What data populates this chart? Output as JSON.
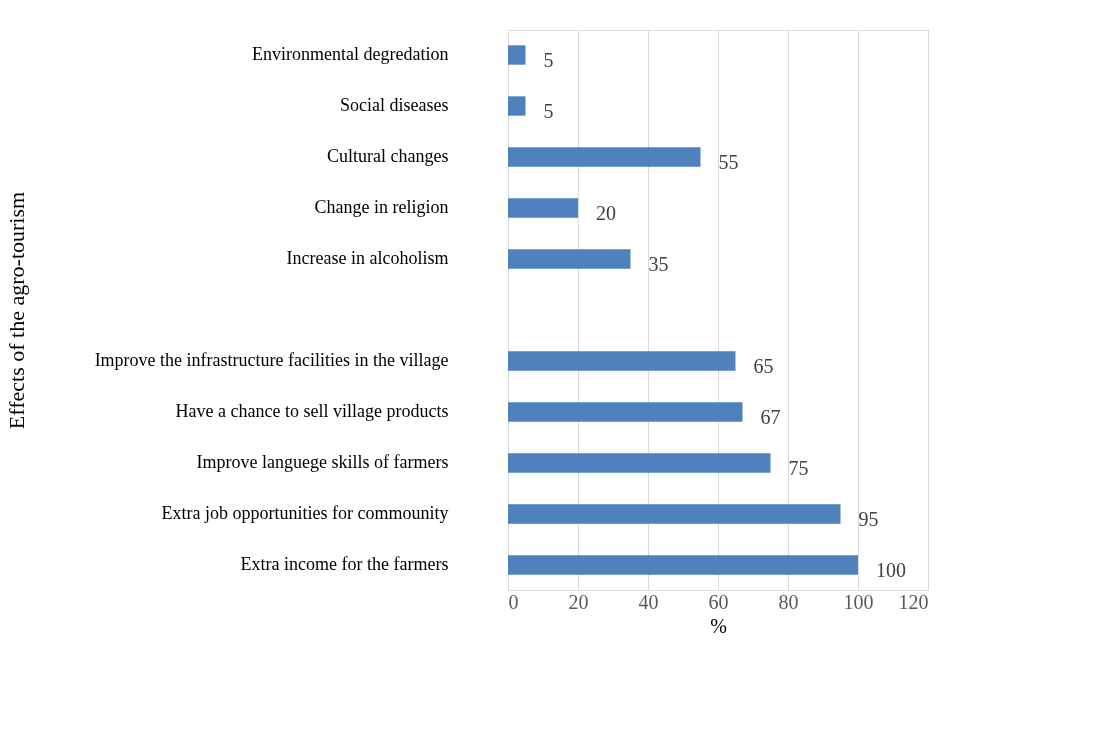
{
  "chart_data": {
    "type": "bar",
    "orientation": "horizontal",
    "xlabel": "%",
    "ylabel": "Effects of the agro-tourism",
    "categories": [
      "Environmental degredation",
      "Social diseases",
      "Cultural changes",
      "Change in religion",
      "Increase in alcoholism",
      null,
      "Improve the infrastructure facilities in the village",
      "Have a chance to sell village products",
      "Improve languege skills of farmers",
      "Extra job opportunities for commounity",
      "Extra income for the farmers"
    ],
    "values": [
      5,
      5,
      55,
      20,
      35,
      null,
      65,
      67,
      75,
      95,
      100
    ],
    "color": "#4f81bd",
    "xlim": [
      0,
      120
    ],
    "xticks": [
      0,
      20,
      40,
      60,
      80,
      100,
      120
    ],
    "grid": "x",
    "data_labels": true
  }
}
